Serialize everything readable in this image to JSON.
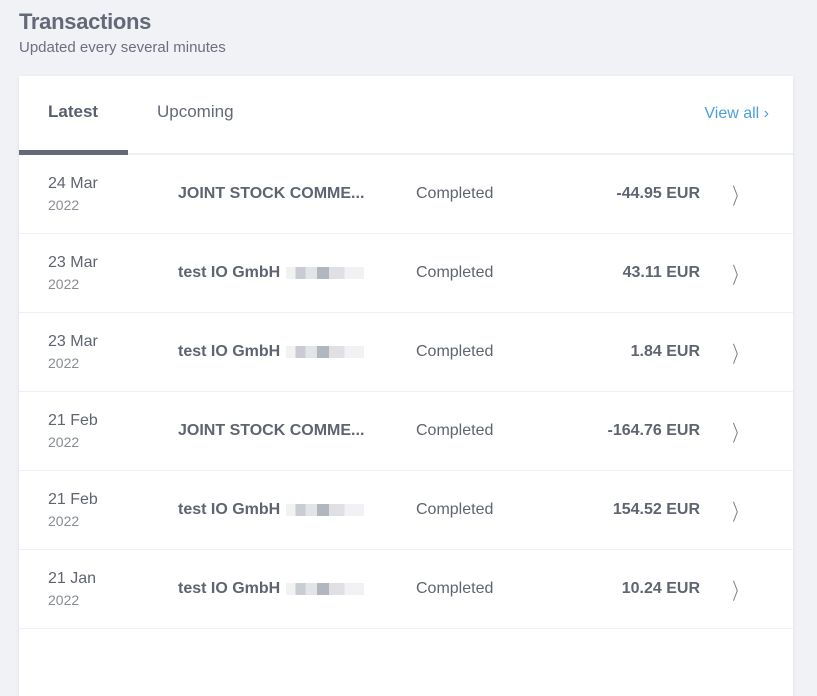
{
  "header": {
    "title": "Transactions",
    "subtitle": "Updated every several minutes"
  },
  "tabs": [
    {
      "label": "Latest",
      "active": true
    },
    {
      "label": "Upcoming",
      "active": false
    }
  ],
  "view_all": "View all ›",
  "transactions": [
    {
      "day": "24 Mar",
      "year": "2022",
      "name": "JOINT STOCK COMME...",
      "redacted": false,
      "status": "Completed",
      "amount": "-44.95 EUR"
    },
    {
      "day": "23 Mar",
      "year": "2022",
      "name": "test IO GmbH",
      "redacted": true,
      "status": "Completed",
      "amount": "43.11 EUR"
    },
    {
      "day": "23 Mar",
      "year": "2022",
      "name": "test IO GmbH",
      "redacted": true,
      "status": "Completed",
      "amount": "1.84 EUR"
    },
    {
      "day": "21 Feb",
      "year": "2022",
      "name": "JOINT STOCK COMME...",
      "redacted": false,
      "status": "Completed",
      "amount": "-164.76 EUR"
    },
    {
      "day": "21 Feb",
      "year": "2022",
      "name": "test IO GmbH",
      "redacted": true,
      "status": "Completed",
      "amount": "154.52 EUR"
    },
    {
      "day": "21 Jan",
      "year": "2022",
      "name": "test IO GmbH",
      "redacted": true,
      "status": "Completed",
      "amount": "10.24 EUR"
    }
  ]
}
